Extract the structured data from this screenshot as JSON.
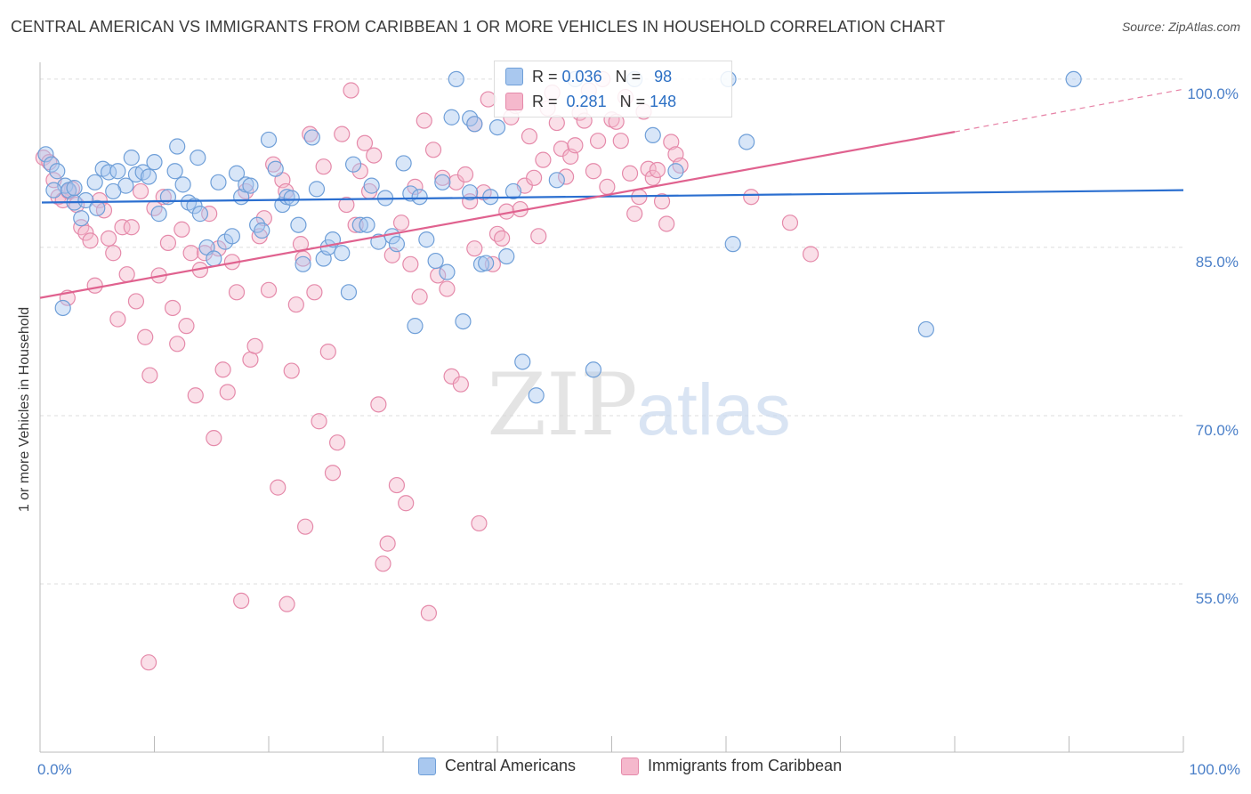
{
  "title": "CENTRAL AMERICAN VS IMMIGRANTS FROM CARIBBEAN 1 OR MORE VEHICLES IN HOUSEHOLD CORRELATION CHART",
  "source": "Source: ZipAtlas.com",
  "watermark": {
    "zip": "ZIP",
    "atlas": "atlas"
  },
  "colors": {
    "blue_fill": "#a9c8ef",
    "blue_stroke": "#6f9fd8",
    "blue_line": "#2b6fd0",
    "pink_fill": "#f5b8cc",
    "pink_stroke": "#e58aaa",
    "pink_line": "#e0628f",
    "tick_label": "#4a7fc8",
    "grid": "#dddddd"
  },
  "stats": [
    {
      "r_label": "R =",
      "r_value": "0.036",
      "n_label": "N =",
      "n_value": "98",
      "color": "#a9c8ef"
    },
    {
      "r_label": "R =",
      "r_value": "0.281",
      "n_label": "N =",
      "n_value": "148",
      "color": "#f5b8cc"
    }
  ],
  "chart_data": {
    "type": "scatter",
    "title": "CENTRAL AMERICAN VS IMMIGRANTS FROM CARIBBEAN 1 OR MORE VEHICLES IN HOUSEHOLD CORRELATION CHART",
    "xlabel": "",
    "ylabel": "1 or more Vehicles in Household",
    "xlim": [
      0,
      100
    ],
    "ylim": [
      40,
      101.5
    ],
    "x_tick_labels": [
      "0.0%",
      "100.0%"
    ],
    "y_ticks": [
      55,
      70,
      85,
      100
    ],
    "y_tick_labels": [
      "55.0%",
      "70.0%",
      "85.0%",
      "100.0%"
    ],
    "grid": true,
    "legend_position": "bottom",
    "series": [
      {
        "name": "Central Americans",
        "trend": {
          "x": [
            0,
            100
          ],
          "y": [
            89.0,
            90.1
          ]
        },
        "points": [
          [
            0.5,
            93.3
          ],
          [
            1.0,
            92.4
          ],
          [
            1.5,
            91.8
          ],
          [
            2.2,
            90.5
          ],
          [
            2.5,
            90.1
          ],
          [
            3.0,
            89.0
          ],
          [
            3.6,
            87.6
          ],
          [
            4.8,
            90.8
          ],
          [
            5.5,
            92.0
          ],
          [
            6.0,
            91.7
          ],
          [
            6.8,
            91.8
          ],
          [
            7.5,
            90.5
          ],
          [
            8.0,
            93.0
          ],
          [
            8.4,
            91.5
          ],
          [
            9.0,
            91.7
          ],
          [
            9.5,
            91.3
          ],
          [
            10.0,
            92.6
          ],
          [
            10.4,
            88.0
          ],
          [
            11.2,
            89.5
          ],
          [
            11.8,
            91.8
          ],
          [
            12.5,
            90.6
          ],
          [
            13.0,
            89.0
          ],
          [
            13.5,
            88.7
          ],
          [
            14.0,
            88.0
          ],
          [
            14.6,
            85.0
          ],
          [
            15.2,
            84.0
          ],
          [
            15.6,
            90.8
          ],
          [
            16.2,
            85.5
          ],
          [
            16.8,
            86.0
          ],
          [
            17.2,
            91.6
          ],
          [
            17.6,
            89.5
          ],
          [
            18.0,
            90.6
          ],
          [
            18.4,
            90.5
          ],
          [
            19.0,
            87.0
          ],
          [
            19.4,
            86.5
          ],
          [
            20.0,
            94.6
          ],
          [
            20.6,
            92.0
          ],
          [
            21.2,
            88.8
          ],
          [
            21.6,
            89.5
          ],
          [
            22.0,
            89.4
          ],
          [
            22.6,
            87.0
          ],
          [
            23.0,
            83.5
          ],
          [
            23.8,
            94.8
          ],
          [
            24.2,
            90.2
          ],
          [
            24.8,
            84.0
          ],
          [
            25.2,
            85.0
          ],
          [
            25.6,
            85.7
          ],
          [
            26.4,
            84.5
          ],
          [
            27.0,
            81.0
          ],
          [
            27.4,
            92.4
          ],
          [
            28.0,
            87.0
          ],
          [
            28.6,
            87.0
          ],
          [
            29.0,
            90.5
          ],
          [
            29.6,
            85.5
          ],
          [
            30.2,
            89.4
          ],
          [
            30.8,
            86.0
          ],
          [
            31.2,
            85.3
          ],
          [
            31.8,
            92.5
          ],
          [
            32.4,
            89.8
          ],
          [
            32.8,
            78.0
          ],
          [
            33.2,
            89.5
          ],
          [
            33.8,
            85.7
          ],
          [
            34.6,
            83.8
          ],
          [
            35.2,
            90.8
          ],
          [
            35.6,
            82.8
          ],
          [
            36.0,
            96.6
          ],
          [
            36.4,
            100.0
          ],
          [
            37.0,
            78.4
          ],
          [
            37.6,
            96.5
          ],
          [
            38.0,
            96.0
          ],
          [
            38.6,
            83.5
          ],
          [
            39.0,
            83.6
          ],
          [
            39.4,
            89.5
          ],
          [
            40.0,
            95.7
          ],
          [
            40.8,
            84.2
          ],
          [
            41.4,
            90.0
          ],
          [
            42.2,
            74.8
          ],
          [
            43.4,
            71.8
          ],
          [
            45.2,
            91.0
          ],
          [
            46.8,
            100.0
          ],
          [
            48.4,
            74.1
          ],
          [
            52.0,
            100.0
          ],
          [
            53.6,
            95.0
          ],
          [
            55.6,
            91.8
          ],
          [
            60.2,
            100.0
          ],
          [
            60.6,
            85.3
          ],
          [
            61.8,
            94.4
          ],
          [
            77.5,
            77.7
          ],
          [
            90.4,
            100.0
          ],
          [
            3.0,
            90.3
          ],
          [
            4.0,
            89.2
          ],
          [
            1.2,
            90.1
          ],
          [
            5.0,
            88.5
          ],
          [
            2.0,
            79.6
          ],
          [
            13.8,
            93.0
          ],
          [
            12.0,
            94.0
          ],
          [
            6.4,
            90.0
          ],
          [
            37.6,
            89.9
          ]
        ]
      },
      {
        "name": "Immigrants from Caribbean",
        "trend": {
          "x": [
            0,
            80
          ],
          "y": [
            80.5,
            95.3
          ],
          "x_dashed_end": 100,
          "y_dashed_end": 99.1
        },
        "points": [
          [
            0.3,
            93.0
          ],
          [
            0.8,
            92.6
          ],
          [
            1.2,
            91.0
          ],
          [
            1.6,
            89.5
          ],
          [
            2.0,
            89.2
          ],
          [
            2.4,
            80.5
          ],
          [
            2.8,
            90.2
          ],
          [
            3.2,
            88.8
          ],
          [
            3.6,
            86.8
          ],
          [
            4.0,
            86.3
          ],
          [
            4.4,
            85.6
          ],
          [
            4.8,
            81.6
          ],
          [
            5.2,
            89.2
          ],
          [
            5.6,
            88.3
          ],
          [
            6.0,
            85.8
          ],
          [
            6.4,
            84.5
          ],
          [
            6.8,
            78.6
          ],
          [
            7.2,
            86.8
          ],
          [
            7.6,
            82.6
          ],
          [
            8.0,
            86.8
          ],
          [
            8.4,
            80.2
          ],
          [
            8.8,
            90.0
          ],
          [
            9.2,
            77.0
          ],
          [
            9.6,
            73.6
          ],
          [
            10.0,
            88.5
          ],
          [
            10.4,
            82.5
          ],
          [
            10.8,
            89.5
          ],
          [
            11.2,
            85.4
          ],
          [
            11.6,
            79.6
          ],
          [
            12.0,
            76.4
          ],
          [
            12.4,
            86.6
          ],
          [
            12.8,
            78.0
          ],
          [
            13.2,
            84.5
          ],
          [
            13.6,
            71.8
          ],
          [
            14.0,
            83.0
          ],
          [
            14.4,
            84.5
          ],
          [
            14.8,
            88.0
          ],
          [
            15.2,
            68.0
          ],
          [
            15.6,
            84.9
          ],
          [
            16.0,
            74.1
          ],
          [
            16.4,
            72.1
          ],
          [
            16.8,
            83.7
          ],
          [
            17.2,
            81.0
          ],
          [
            17.6,
            53.5
          ],
          [
            18.0,
            90.0
          ],
          [
            18.4,
            75.0
          ],
          [
            18.8,
            76.2
          ],
          [
            19.2,
            86.0
          ],
          [
            19.6,
            87.6
          ],
          [
            20.0,
            81.2
          ],
          [
            20.4,
            92.4
          ],
          [
            20.8,
            63.6
          ],
          [
            21.2,
            91.0
          ],
          [
            21.6,
            53.2
          ],
          [
            22.0,
            74.0
          ],
          [
            22.4,
            79.9
          ],
          [
            22.8,
            85.3
          ],
          [
            23.2,
            60.1
          ],
          [
            23.6,
            95.1
          ],
          [
            24.0,
            81.0
          ],
          [
            24.4,
            69.5
          ],
          [
            24.8,
            92.2
          ],
          [
            25.2,
            75.7
          ],
          [
            25.6,
            64.9
          ],
          [
            26.0,
            67.6
          ],
          [
            26.4,
            95.1
          ],
          [
            26.8,
            88.8
          ],
          [
            27.2,
            99.0
          ],
          [
            27.6,
            87.0
          ],
          [
            28.0,
            91.8
          ],
          [
            28.4,
            94.3
          ],
          [
            28.8,
            90.0
          ],
          [
            29.2,
            93.2
          ],
          [
            29.6,
            71.0
          ],
          [
            30.0,
            56.8
          ],
          [
            30.4,
            58.6
          ],
          [
            30.8,
            84.3
          ],
          [
            31.2,
            63.8
          ],
          [
            31.6,
            87.2
          ],
          [
            32.0,
            62.2
          ],
          [
            32.4,
            83.5
          ],
          [
            32.8,
            90.4
          ],
          [
            33.2,
            80.6
          ],
          [
            33.6,
            96.3
          ],
          [
            34.0,
            52.4
          ],
          [
            34.4,
            93.7
          ],
          [
            34.8,
            82.5
          ],
          [
            35.2,
            91.2
          ],
          [
            35.6,
            81.3
          ],
          [
            36.0,
            73.5
          ],
          [
            36.4,
            90.8
          ],
          [
            36.8,
            72.8
          ],
          [
            37.2,
            91.5
          ],
          [
            37.6,
            89.1
          ],
          [
            38.0,
            84.9
          ],
          [
            38.4,
            60.4
          ],
          [
            38.8,
            89.9
          ],
          [
            39.2,
            98.2
          ],
          [
            39.6,
            83.5
          ],
          [
            40.0,
            86.2
          ],
          [
            40.4,
            85.8
          ],
          [
            40.8,
            88.2
          ],
          [
            41.2,
            96.6
          ],
          [
            41.6,
            97.6
          ],
          [
            42.0,
            88.4
          ],
          [
            42.4,
            90.5
          ],
          [
            42.8,
            94.9
          ],
          [
            43.2,
            91.2
          ],
          [
            43.6,
            86.0
          ],
          [
            44.0,
            92.8
          ],
          [
            44.4,
            97.4
          ],
          [
            44.8,
            98.8
          ],
          [
            45.2,
            96.1
          ],
          [
            45.6,
            93.8
          ],
          [
            46.0,
            91.3
          ],
          [
            46.4,
            93.1
          ],
          [
            46.8,
            94.1
          ],
          [
            47.2,
            97.0
          ],
          [
            47.6,
            96.3
          ],
          [
            48.0,
            99.0
          ],
          [
            48.4,
            91.8
          ],
          [
            48.8,
            94.5
          ],
          [
            49.2,
            100.0
          ],
          [
            49.6,
            90.4
          ],
          [
            50.0,
            96.4
          ],
          [
            50.4,
            96.2
          ],
          [
            50.8,
            94.5
          ],
          [
            51.2,
            98.4
          ],
          [
            51.6,
            91.6
          ],
          [
            52.0,
            88.0
          ],
          [
            52.4,
            89.5
          ],
          [
            52.8,
            97.1
          ],
          [
            53.2,
            92.0
          ],
          [
            53.6,
            91.2
          ],
          [
            54.0,
            91.9
          ],
          [
            54.4,
            89.1
          ],
          [
            54.8,
            87.1
          ],
          [
            55.2,
            94.4
          ],
          [
            55.6,
            93.3
          ],
          [
            56.0,
            92.3
          ],
          [
            62.2,
            89.5
          ],
          [
            65.6,
            87.2
          ],
          [
            67.4,
            84.4
          ],
          [
            9.5,
            48.0
          ],
          [
            21.5,
            90.0
          ],
          [
            23.0,
            84.0
          ],
          [
            38.0,
            96.0
          ],
          [
            2.5,
            90.0
          ]
        ]
      }
    ]
  }
}
